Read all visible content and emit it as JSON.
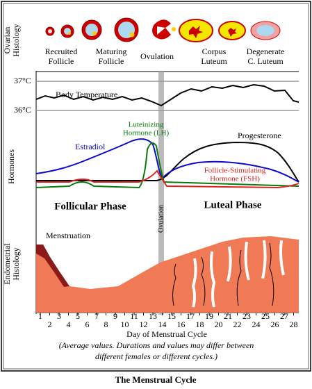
{
  "ovarian_histology": {
    "label": [
      "Ovarian",
      "Histology"
    ],
    "stages": [
      [
        "Recruited",
        "Follicle"
      ],
      [
        "Maturing",
        "Follicle"
      ],
      [
        "Ovulation"
      ],
      [
        "Corpus",
        "Luteum"
      ],
      [
        "Degenerate",
        "C. Luteum"
      ]
    ]
  },
  "temperature": {
    "labels": [
      "37°C",
      "36°C"
    ],
    "curve_label": "Body Temperature"
  },
  "hormones": {
    "label": "Hormones",
    "lh": [
      "Luteinizing",
      "Hormone (LH)"
    ],
    "estradiol": "Estradiol",
    "progesterone": "Progesterone",
    "fsh": [
      "Follicle-Stimulating",
      "Hormone (FSH)"
    ]
  },
  "phases": {
    "follicular": "Follicular Phase",
    "luteal": "Luteal Phase",
    "ovulation": "Ovulation"
  },
  "endometrium": {
    "label": [
      "Endometrial",
      "Histology"
    ],
    "menstruation": "Menstruation"
  },
  "day_axis": {
    "days": [
      1,
      2,
      3,
      4,
      5,
      6,
      7,
      8,
      9,
      10,
      11,
      12,
      13,
      14,
      15,
      16,
      17,
      18,
      19,
      20,
      21,
      22,
      23,
      24,
      25,
      26,
      27,
      28
    ],
    "title": "Day of Menstrual Cycle"
  },
  "note": [
    "(Average values. Durations and values may differ between",
    "different females or different cycles.)"
  ],
  "caption": "The Menstrual Cycle"
}
